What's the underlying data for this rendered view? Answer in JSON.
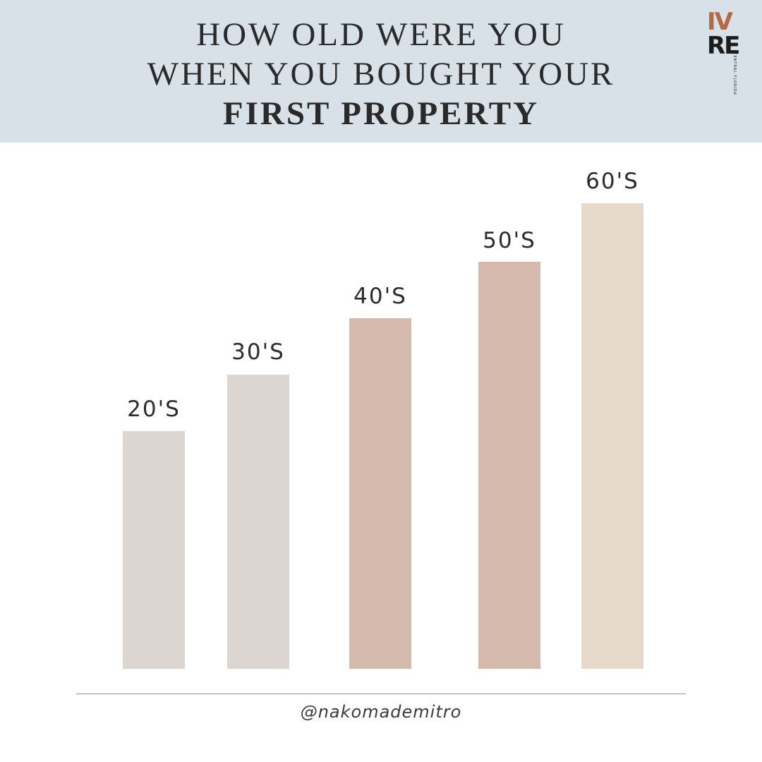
{
  "header": {
    "title_lines": [
      "HOW OLD WERE YOU",
      "WHEN YOU BOUGHT YOUR",
      "FIRST PROPERTY"
    ]
  },
  "logo": {
    "lines": [
      "IV",
      "RE"
    ],
    "tagline": [
      "CENTRAL",
      "FLORIDA"
    ]
  },
  "bars": {
    "labels": [
      "20'S",
      "30'S",
      "40'S",
      "50'S",
      "60'S"
    ]
  },
  "footer": {
    "handle": "@nakomademitro"
  }
}
